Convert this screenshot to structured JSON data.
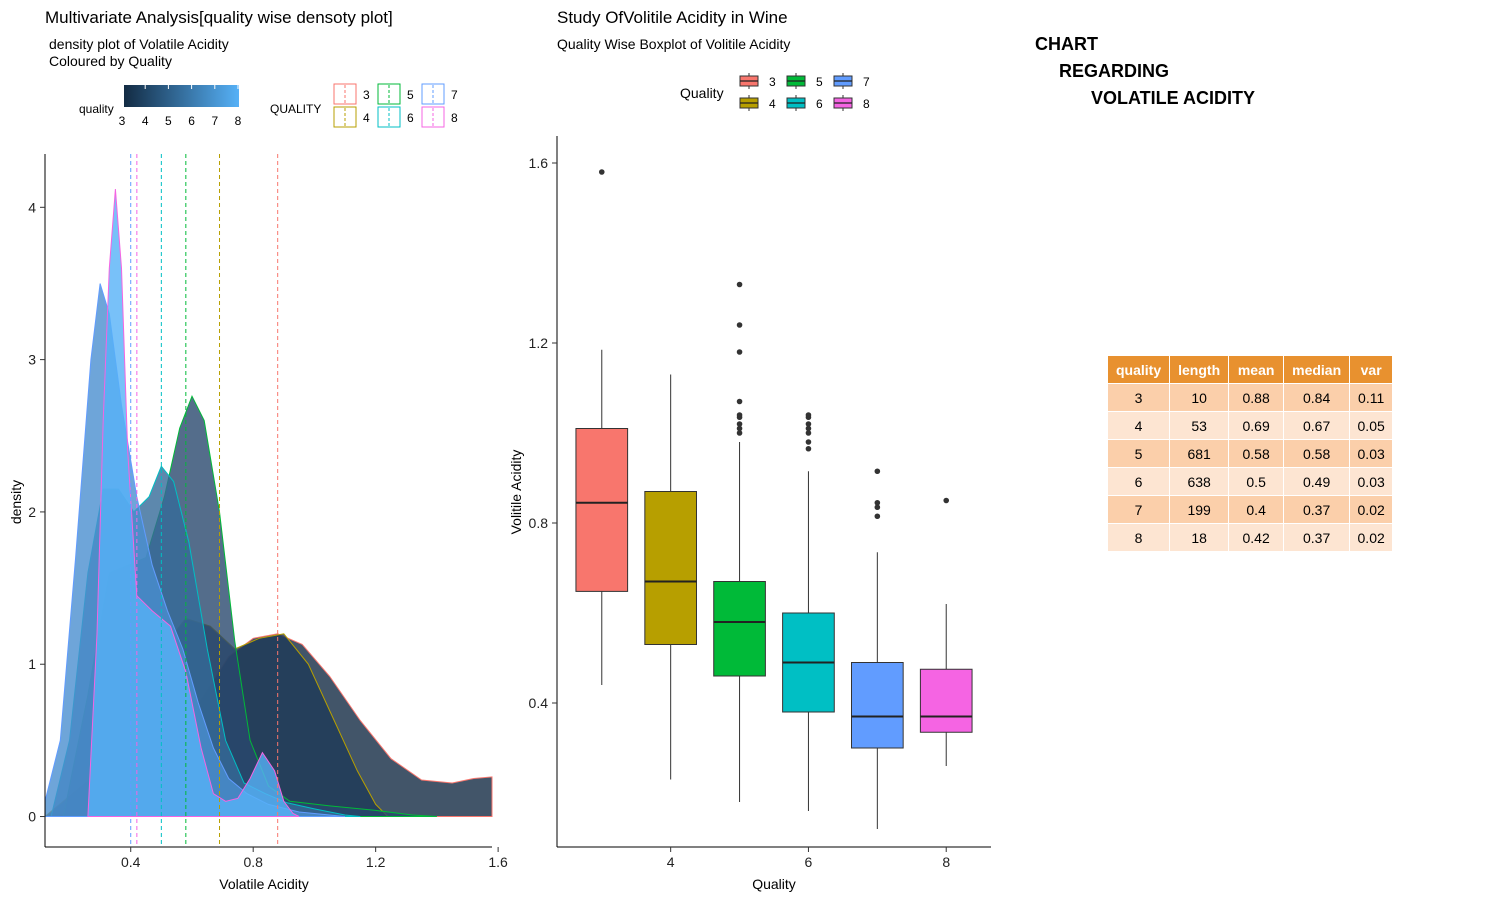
{
  "chart_data": [
    {
      "type": "density",
      "title": "Multivariate Analysis[quality wise densoty plot]",
      "subtitle_line1": "density plot of Volatile Acidity",
      "subtitle_line2": "Coloured by Quality",
      "xlabel": "Volatile Acidity",
      "ylabel": "density",
      "xlim": [
        0.12,
        1.58
      ],
      "ylim": [
        -0.2,
        4.35
      ],
      "xticks": [
        0.4,
        0.8,
        1.2,
        1.6
      ],
      "xtick_labels": [
        "0.4",
        "0.8",
        "1.2",
        "1.6"
      ],
      "yticks": [
        0,
        1,
        2,
        3,
        4
      ],
      "ytick_labels": [
        "0",
        "1",
        "2",
        "3",
        "4"
      ],
      "fill_legend": {
        "title": "quality",
        "ticks": [
          "3",
          "4",
          "5",
          "6",
          "7",
          "8"
        ],
        "low": "#132B43",
        "high": "#56B1F7"
      },
      "line_legend": {
        "title": "QUALITY",
        "labels": [
          "3",
          "4",
          "5",
          "6",
          "7",
          "8"
        ]
      },
      "series": [
        {
          "quality": "3",
          "mean": 0.88,
          "line_color": "#F8766D",
          "fill": "#132B43",
          "points": [
            [
              0.12,
              0
            ],
            [
              0.36,
              0.05
            ],
            [
              0.45,
              0.2
            ],
            [
              0.55,
              0.5
            ],
            [
              0.64,
              0.8
            ],
            [
              0.72,
              1.05
            ],
            [
              0.8,
              1.17
            ],
            [
              0.88,
              1.2
            ],
            [
              0.96,
              1.13
            ],
            [
              1.05,
              0.92
            ],
            [
              1.15,
              0.63
            ],
            [
              1.25,
              0.38
            ],
            [
              1.35,
              0.24
            ],
            [
              1.45,
              0.22
            ],
            [
              1.52,
              0.25
            ],
            [
              1.58,
              0.26
            ],
            [
              1.58,
              0
            ]
          ]
        },
        {
          "quality": "4",
          "mean": 0.69,
          "line_color": "#B79F00",
          "fill": "#1E3A58",
          "points": [
            [
              0.12,
              0
            ],
            [
              0.3,
              0.3
            ],
            [
              0.4,
              0.7
            ],
            [
              0.5,
              1.1
            ],
            [
              0.58,
              1.3
            ],
            [
              0.66,
              1.25
            ],
            [
              0.74,
              1.1
            ],
            [
              0.82,
              1.17
            ],
            [
              0.9,
              1.2
            ],
            [
              0.98,
              1.0
            ],
            [
              1.06,
              0.65
            ],
            [
              1.14,
              0.3
            ],
            [
              1.2,
              0.08
            ],
            [
              1.24,
              0.0
            ]
          ]
        },
        {
          "quality": "5",
          "mean": 0.58,
          "line_color": "#00BA38",
          "fill": "#29496E",
          "points": [
            [
              0.18,
              0
            ],
            [
              0.26,
              0.8
            ],
            [
              0.33,
              1.6
            ],
            [
              0.39,
              1.65
            ],
            [
              0.45,
              1.7
            ],
            [
              0.51,
              2.1
            ],
            [
              0.56,
              2.55
            ],
            [
              0.6,
              2.76
            ],
            [
              0.64,
              2.6
            ],
            [
              0.69,
              2.0
            ],
            [
              0.74,
              1.15
            ],
            [
              0.79,
              0.5
            ],
            [
              0.85,
              0.2
            ],
            [
              0.92,
              0.1
            ],
            [
              1.05,
              0.07
            ],
            [
              1.2,
              0.04
            ],
            [
              1.32,
              0.01
            ],
            [
              1.4,
              0
            ]
          ]
        },
        {
          "quality": "6",
          "mean": 0.5,
          "line_color": "#00BFC4",
          "fill": "#356A98",
          "points": [
            [
              0.14,
              0
            ],
            [
              0.2,
              0.5
            ],
            [
              0.26,
              1.6
            ],
            [
              0.31,
              2.15
            ],
            [
              0.36,
              2.15
            ],
            [
              0.41,
              2.0
            ],
            [
              0.46,
              2.1
            ],
            [
              0.5,
              2.3
            ],
            [
              0.54,
              2.2
            ],
            [
              0.59,
              1.8
            ],
            [
              0.65,
              1.1
            ],
            [
              0.71,
              0.5
            ],
            [
              0.77,
              0.22
            ],
            [
              0.84,
              0.15
            ],
            [
              0.91,
              0.09
            ],
            [
              1.0,
              0.05
            ],
            [
              1.1,
              0.01
            ],
            [
              1.15,
              0
            ]
          ]
        },
        {
          "quality": "7",
          "mean": 0.4,
          "line_color": "#619CFF",
          "fill": "#4A8FD0",
          "points": [
            [
              0.12,
              0.1
            ],
            [
              0.17,
              0.5
            ],
            [
              0.22,
              1.7
            ],
            [
              0.27,
              3.0
            ],
            [
              0.3,
              3.5
            ],
            [
              0.33,
              3.3
            ],
            [
              0.37,
              2.7
            ],
            [
              0.42,
              2.1
            ],
            [
              0.47,
              1.65
            ],
            [
              0.52,
              1.35
            ],
            [
              0.57,
              1.1
            ],
            [
              0.62,
              0.75
            ],
            [
              0.67,
              0.45
            ],
            [
              0.72,
              0.25
            ],
            [
              0.78,
              0.15
            ],
            [
              0.85,
              0.08
            ],
            [
              0.95,
              0.03
            ],
            [
              1.05,
              0.01
            ],
            [
              1.1,
              0
            ]
          ]
        },
        {
          "quality": "8",
          "mean": 0.42,
          "line_color": "#F564E3",
          "fill": "#56B1F7",
          "points": [
            [
              0.26,
              0
            ],
            [
              0.29,
              1.2
            ],
            [
              0.31,
              2.6
            ],
            [
              0.33,
              3.6
            ],
            [
              0.35,
              4.12
            ],
            [
              0.37,
              3.6
            ],
            [
              0.39,
              2.4
            ],
            [
              0.42,
              1.45
            ],
            [
              0.47,
              1.35
            ],
            [
              0.53,
              1.25
            ],
            [
              0.58,
              0.95
            ],
            [
              0.63,
              0.45
            ],
            [
              0.67,
              0.15
            ],
            [
              0.71,
              0.1
            ],
            [
              0.75,
              0.12
            ],
            [
              0.79,
              0.25
            ],
            [
              0.83,
              0.42
            ],
            [
              0.87,
              0.3
            ],
            [
              0.9,
              0.1
            ],
            [
              0.93,
              0.02
            ],
            [
              0.95,
              0
            ]
          ]
        }
      ]
    },
    {
      "type": "box",
      "title": "Study OfVolitile Acidity  in Wine",
      "subtitle": "Quality Wise Boxplot of Volitile Acidity",
      "xlabel": "Quality",
      "ylabel": "Volitile Acidity",
      "ylim": [
        0.08,
        1.66
      ],
      "yticks": [
        0.4,
        0.8,
        1.2,
        1.6
      ],
      "ytick_labels": [
        "0.4",
        "0.8",
        "1.2",
        "1.6"
      ],
      "xtick_labels": [
        "4",
        "6",
        "8"
      ],
      "legend": {
        "title": "Quality",
        "labels": [
          "3",
          "4",
          "5",
          "6",
          "7",
          "8"
        ]
      },
      "boxes": [
        {
          "quality": "3",
          "color": "#F8766D",
          "lower_whisker": 0.44,
          "q1": 0.648,
          "median": 0.845,
          "q3": 1.01,
          "upper_whisker": 1.185,
          "outliers": [
            1.58
          ]
        },
        {
          "quality": "4",
          "color": "#B79F00",
          "lower_whisker": 0.23,
          "q1": 0.53,
          "median": 0.67,
          "q3": 0.87,
          "upper_whisker": 1.13,
          "outliers": []
        },
        {
          "quality": "5",
          "color": "#00BA38",
          "lower_whisker": 0.18,
          "q1": 0.46,
          "median": 0.58,
          "q3": 0.67,
          "upper_whisker": 0.98,
          "outliers": [
            1.0,
            1.01,
            1.02,
            1.035,
            1.04,
            1.07,
            1.18,
            1.24,
            1.33
          ]
        },
        {
          "quality": "6",
          "color": "#00BFC4",
          "lower_whisker": 0.16,
          "q1": 0.38,
          "median": 0.49,
          "q3": 0.6,
          "upper_whisker": 0.915,
          "outliers": [
            0.965,
            0.98,
            1.0,
            1.01,
            1.02,
            1.035,
            1.04
          ]
        },
        {
          "quality": "7",
          "color": "#619CFF",
          "lower_whisker": 0.12,
          "q1": 0.3,
          "median": 0.37,
          "q3": 0.49,
          "upper_whisker": 0.735,
          "outliers": [
            0.815,
            0.835,
            0.845,
            0.915
          ]
        },
        {
          "quality": "8",
          "color": "#F564E3",
          "lower_whisker": 0.26,
          "q1": 0.335,
          "median": 0.37,
          "q3": 0.475,
          "upper_whisker": 0.62,
          "outliers": [
            0.85
          ]
        }
      ]
    },
    {
      "type": "table",
      "columns": [
        "quality",
        "length",
        "mean",
        "median",
        "var"
      ],
      "rows": [
        [
          "3",
          "10",
          "0.88",
          "0.84",
          "0.11"
        ],
        [
          "4",
          "53",
          "0.69",
          "0.67",
          "0.05"
        ],
        [
          "5",
          "681",
          "0.58",
          "0.58",
          "0.03"
        ],
        [
          "6",
          "638",
          "0.5",
          "0.49",
          "0.03"
        ],
        [
          "7",
          "199",
          "0.4",
          "0.37",
          "0.02"
        ],
        [
          "8",
          "18",
          "0.42",
          "0.37",
          "0.02"
        ]
      ]
    }
  ],
  "side_title": {
    "line1": "CHART",
    "line2": "REGARDING",
    "line3": "VOLATILE ACIDITY"
  }
}
